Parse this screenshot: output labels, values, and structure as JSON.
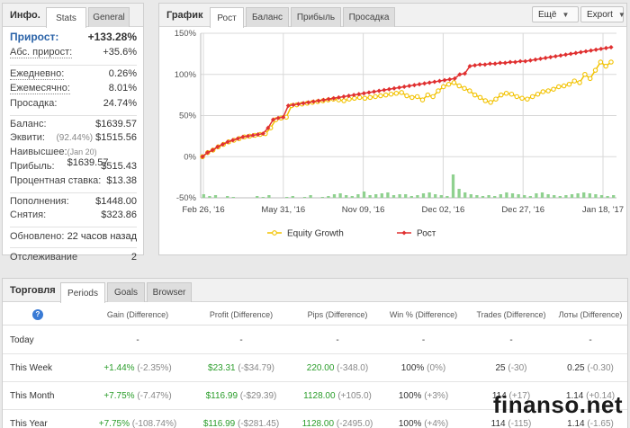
{
  "info": {
    "title": "Инфо.",
    "tabs": [
      "Stats",
      "General"
    ],
    "rows": [
      {
        "label": "Прирост:",
        "value": "+133.28%"
      },
      {
        "label": "Абс. прирост:",
        "value": "+35.6%"
      },
      {
        "label": "Ежедневно:",
        "value": "0.26%"
      },
      {
        "label": "Ежемесячно:",
        "value": "8.01%"
      },
      {
        "label": "Просадка:",
        "value": "24.74%"
      },
      {
        "label": "Баланс:",
        "value": "$1639.57"
      },
      {
        "label": "Эквити:",
        "note": "(92.44%)",
        "value": "$1515.56"
      },
      {
        "label": "Наивысшее:",
        "note": "(Jan 20)",
        "value": "$1639.57"
      },
      {
        "label": "Прибыль:",
        "value": "$515.43"
      },
      {
        "label": "Процентная ставка:",
        "value": "$13.38"
      },
      {
        "label": "Пополнения:",
        "value": "$1448.00"
      },
      {
        "label": "Снятия:",
        "value": "$323.86"
      },
      {
        "label": "Обновлено:",
        "value": "22 часов назад"
      },
      {
        "label": "Отслеживание",
        "value": "2"
      }
    ]
  },
  "chart_panel": {
    "title": "График",
    "tabs": [
      "Рост",
      "Баланс",
      "Прибыль",
      "Просадка"
    ],
    "dropdown": "Ещё",
    "export": "Export"
  },
  "chart_data": {
    "type": "line",
    "x_tick_labels": [
      "Feb 26, '16",
      "May 31, '16",
      "Nov 09, '16",
      "Dec 02, '16",
      "Dec 27, '16",
      "Jan 18, '17"
    ],
    "y_tick_labels": [
      "150%",
      "100%",
      "50%",
      "0%",
      "-50%"
    ],
    "ylim": [
      -50,
      150
    ],
    "grid": true,
    "legend_position": "bottom",
    "series": [
      {
        "name": "Equity Growth",
        "color": "#f2c200",
        "values": [
          0,
          5,
          8,
          12,
          15,
          18,
          20,
          22,
          24,
          25,
          26,
          27,
          28,
          35,
          45,
          47,
          48,
          62,
          63,
          64,
          65,
          66,
          67,
          68,
          69,
          70,
          69,
          68,
          70,
          71,
          72,
          71,
          72,
          73,
          74,
          75,
          76,
          77,
          78,
          74,
          72,
          73,
          69,
          75,
          73,
          80,
          85,
          88,
          90,
          86,
          83,
          80,
          75,
          72,
          68,
          66,
          70,
          75,
          77,
          76,
          73,
          71,
          70,
          73,
          76,
          79,
          80,
          82,
          85,
          86,
          88,
          92,
          90,
          100,
          95,
          105,
          115,
          110,
          115
        ]
      },
      {
        "name": "Рост",
        "color": "#e03030",
        "values": [
          0,
          5,
          8,
          12,
          15,
          18,
          20,
          22,
          24,
          25,
          26,
          27,
          28,
          35,
          45,
          47,
          48,
          62,
          63,
          64,
          65,
          66,
          67,
          68,
          69,
          70,
          71,
          72,
          73,
          74,
          75,
          76,
          77,
          78,
          79,
          80,
          81,
          82,
          83,
          84,
          85,
          86,
          87,
          88,
          89,
          90,
          91,
          92,
          93,
          94,
          95,
          100,
          101,
          110,
          111,
          112,
          112,
          113,
          113,
          114,
          114,
          115,
          115,
          116,
          116,
          117,
          118,
          119,
          120,
          121,
          122,
          123,
          124,
          125,
          126,
          127,
          128,
          129,
          130,
          131,
          132,
          133
        ]
      }
    ],
    "bars": [
      4,
      2,
      3,
      0,
      2,
      1,
      0,
      0,
      0,
      2,
      1,
      3,
      0,
      0,
      1,
      2,
      0,
      1,
      3,
      0,
      1,
      2,
      4,
      5,
      3,
      2,
      4,
      7,
      3,
      4,
      5,
      6,
      3,
      4,
      4,
      2,
      3,
      5,
      6,
      4,
      3,
      2,
      26,
      10,
      6,
      4,
      3,
      2,
      3,
      2,
      4,
      6,
      5,
      4,
      3,
      2,
      5,
      6,
      4,
      3,
      2,
      3,
      4,
      5,
      6,
      5,
      4,
      3,
      2,
      3
    ]
  },
  "trading": {
    "title": "Торговля",
    "tabs": [
      "Periods",
      "Goals",
      "Browser"
    ],
    "help_icon": "?",
    "columns": [
      "Gain (Difference)",
      "Profit (Difference)",
      "Pips (Difference)",
      "Win % (Difference)",
      "Trades (Difference)",
      "Лоты (Difference)"
    ],
    "rows": [
      {
        "name": "Today",
        "gain": "-",
        "gain_diff": "",
        "profit": "-",
        "profit_diff": "",
        "pips": "-",
        "pips_diff": "",
        "win": "-",
        "win_diff": "",
        "trades": "-",
        "trades_diff": "",
        "lots": "-",
        "lots_diff": ""
      },
      {
        "name": "This Week",
        "gain": "+1.44%",
        "gain_diff": "(-2.35%)",
        "profit": "$23.31",
        "profit_diff": "(-$34.79)",
        "pips": "220.00",
        "pips_diff": "(-348.0)",
        "win": "100%",
        "win_diff": "(0%)",
        "trades": "25",
        "trades_diff": "(-30)",
        "lots": "0.25",
        "lots_diff": "(-0.30)"
      },
      {
        "name": "This Month",
        "gain": "+7.75%",
        "gain_diff": "(-7.47%)",
        "profit": "$116.99",
        "profit_diff": "(-$29.39)",
        "pips": "1128.00",
        "pips_diff": "(+105.0)",
        "win": "100%",
        "win_diff": "(+3%)",
        "trades": "114",
        "trades_diff": "(+17)",
        "lots": "1.14",
        "lots_diff": "(+0.14)"
      },
      {
        "name": "This Year",
        "gain": "+7.75%",
        "gain_diff": "(-108.74%)",
        "profit": "$116.99",
        "profit_diff": "(-$281.45)",
        "pips": "1128.00",
        "pips_diff": "(-2495.0)",
        "win": "100%",
        "win_diff": "(+4%)",
        "trades": "114",
        "trades_diff": "(-115)",
        "lots": "1.14",
        "lots_diff": "(-1.65)"
      }
    ]
  },
  "watermark": "finanso.net"
}
